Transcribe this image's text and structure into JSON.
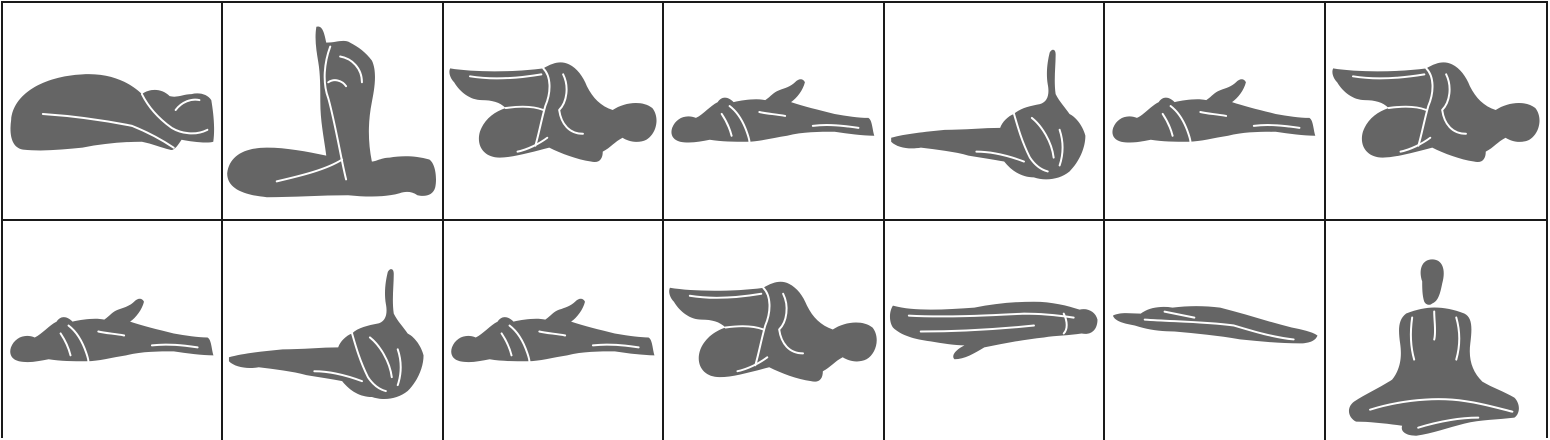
{
  "sheet": {
    "figure_color": "#656565",
    "border_color": "#1a1a1a",
    "background": "#ffffff"
  },
  "poses": [
    {
      "row": 1,
      "col": 1,
      "pose": "child-pose",
      "icon": "child-pose-icon"
    },
    {
      "row": 1,
      "col": 2,
      "pose": "seated-knee-hug",
      "icon": "seated-knee-hug-icon"
    },
    {
      "row": 1,
      "col": 3,
      "pose": "supine-knees-to-chest-left",
      "icon": "knees-to-chest-icon"
    },
    {
      "row": 1,
      "col": 4,
      "pose": "supine-bent-knee",
      "icon": "supine-bent-knee-icon"
    },
    {
      "row": 1,
      "col": 5,
      "pose": "supine-leg-raise-hold",
      "icon": "supine-leg-raise-icon"
    },
    {
      "row": 1,
      "col": 6,
      "pose": "supine-bent-knee",
      "icon": "supine-bent-knee-icon"
    },
    {
      "row": 1,
      "col": 7,
      "pose": "supine-knees-to-chest-left",
      "icon": "knees-to-chest-icon"
    },
    {
      "row": 2,
      "col": 1,
      "pose": "supine-bent-knee",
      "icon": "supine-bent-knee-icon"
    },
    {
      "row": 2,
      "col": 2,
      "pose": "supine-leg-raise-hold",
      "icon": "supine-leg-raise-icon"
    },
    {
      "row": 2,
      "col": 3,
      "pose": "supine-bent-knee",
      "icon": "supine-bent-knee-icon"
    },
    {
      "row": 2,
      "col": 4,
      "pose": "supine-knees-to-chest-left",
      "icon": "knees-to-chest-icon"
    },
    {
      "row": 2,
      "col": 5,
      "pose": "corpse-pose",
      "icon": "corpse-pose-icon"
    },
    {
      "row": 2,
      "col": 6,
      "pose": "corpse-pose-side",
      "icon": "corpse-pose-icon"
    },
    {
      "row": 2,
      "col": 7,
      "pose": "seated-meditation",
      "icon": "seated-meditation-icon"
    }
  ]
}
